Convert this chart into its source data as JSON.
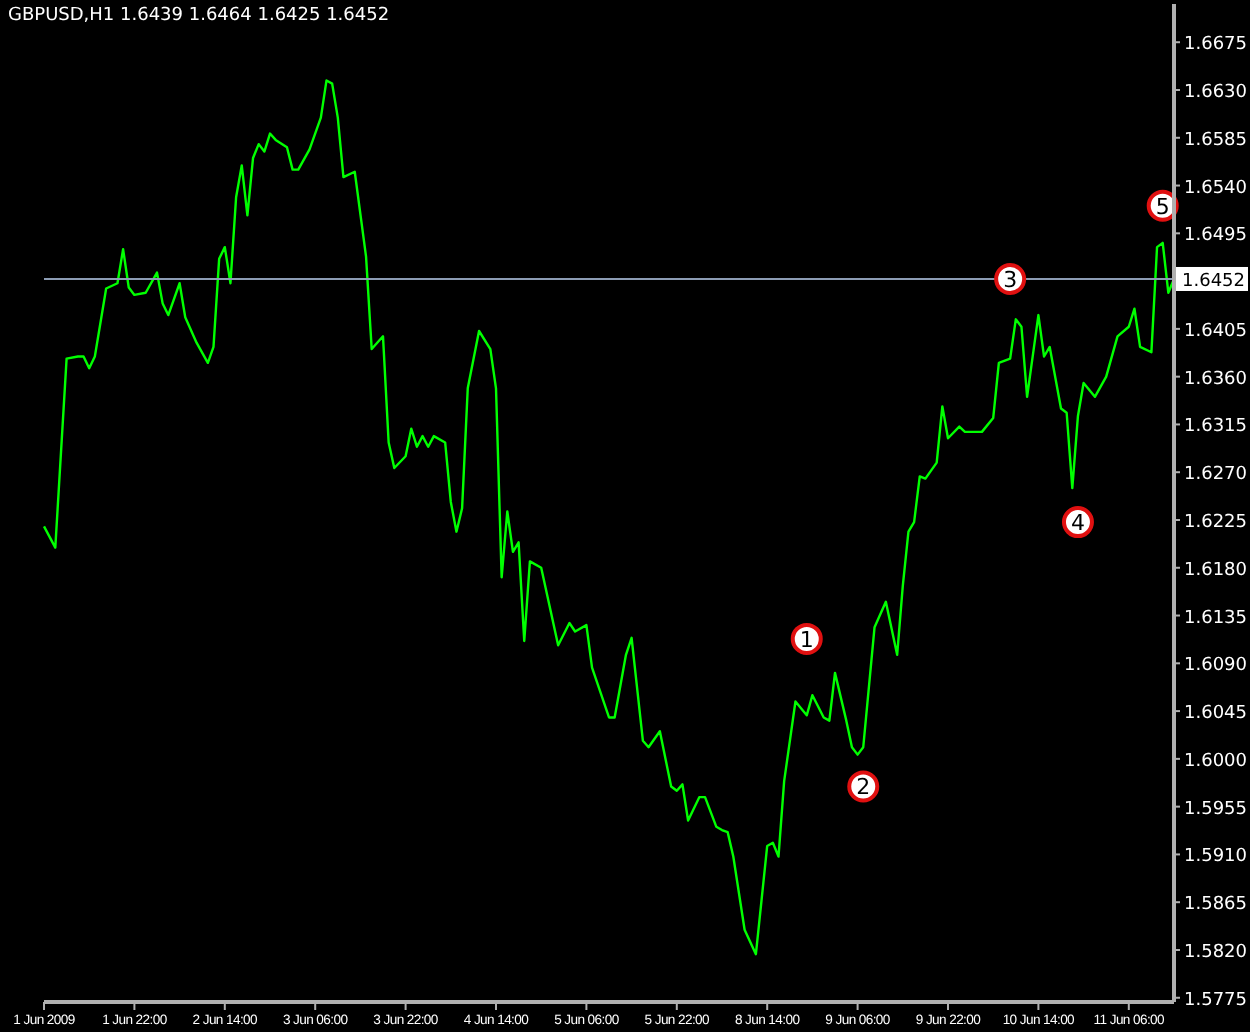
{
  "chart_data": {
    "type": "line",
    "title": "GBPUSD,H1  1.6439 1.6464 1.6425 1.6452",
    "categories": [
      "1 Jun 2009",
      null,
      null,
      null,
      null,
      null,
      null,
      null,
      null,
      null,
      null,
      null,
      null,
      null,
      null,
      null,
      "1 Jun 22:00",
      null,
      null,
      null,
      null,
      null,
      null,
      null,
      null,
      null,
      null,
      null,
      null,
      null,
      null,
      null,
      "2 Jun 14:00",
      null,
      null,
      null,
      null,
      null,
      null,
      null,
      null,
      null,
      null,
      null,
      null,
      null,
      null,
      null,
      "3 Jun 06:00",
      null,
      null,
      null,
      null,
      null,
      null,
      null,
      null,
      null,
      null,
      null,
      null,
      null,
      null,
      null,
      "3 Jun 22:00",
      null,
      null,
      null,
      null,
      null,
      null,
      null,
      null,
      null,
      null,
      null,
      null,
      null,
      null,
      null,
      "4 Jun 14:00",
      null,
      null,
      null,
      null,
      null,
      null,
      null,
      null,
      null,
      null,
      null,
      null,
      null,
      null,
      null,
      "5 Jun 06:00",
      null,
      null,
      null,
      null,
      null,
      null,
      null,
      null,
      null,
      null,
      null,
      null,
      null,
      null,
      null,
      "5 Jun 22:00",
      null,
      null,
      null,
      null,
      null,
      null,
      null,
      null,
      null,
      null,
      null,
      null,
      null,
      null,
      null,
      "8 Jun 14:00",
      null,
      null,
      null,
      null,
      null,
      null,
      null,
      null,
      null,
      null,
      null,
      null,
      null,
      null,
      null,
      "9 Jun 06:00",
      null,
      null,
      null,
      null,
      null,
      null,
      null,
      null,
      null,
      null,
      null,
      null,
      null,
      null,
      null,
      "9 Jun 22:00",
      null,
      null,
      null,
      null,
      null,
      null,
      null,
      null,
      null,
      null,
      null,
      null,
      null,
      null,
      null,
      "10 Jun 14:00",
      null,
      null,
      null,
      null,
      null,
      null,
      null,
      null,
      null,
      null,
      null,
      null,
      null,
      null,
      null,
      "11 Jun 06:00",
      null,
      null,
      null,
      null,
      null,
      null,
      null,
      null
    ],
    "series": [
      {
        "color": "#00ff00",
        "values": [
          1.6219,
          null,
          1.6199,
          null,
          1.6377,
          null,
          1.6379,
          1.6379,
          1.6368,
          1.6379,
          null,
          1.6443,
          null,
          1.6448,
          1.648,
          1.6444,
          1.6437,
          null,
          1.6439,
          null,
          1.6458,
          1.6429,
          1.6418,
          null,
          1.6448,
          1.6416,
          null,
          1.6392,
          null,
          1.6373,
          1.6388,
          1.6471,
          1.6482,
          1.6448,
          1.6529,
          1.6559,
          1.6512,
          1.6566,
          1.6579,
          1.6572,
          1.6589,
          1.6583,
          null,
          1.6576,
          1.6555,
          1.6555,
          null,
          1.6574,
          null,
          1.6604,
          1.6639,
          1.6636,
          1.6604,
          1.6548,
          null,
          1.6553,
          null,
          1.6473,
          1.6386,
          null,
          1.6398,
          1.6298,
          1.6274,
          null,
          1.6285,
          1.6311,
          1.6294,
          1.6304,
          1.6294,
          1.6304,
          null,
          1.6298,
          1.6242,
          1.6214,
          1.6236,
          1.6349,
          null,
          1.6403,
          null,
          1.6386,
          1.6349,
          1.6171,
          1.6233,
          1.6195,
          1.6204,
          1.6111,
          1.6186,
          null,
          1.618,
          null,
          null,
          1.6107,
          null,
          1.6128,
          1.612,
          null,
          1.6126,
          1.6086,
          null,
          null,
          1.6039,
          1.6039,
          null,
          1.6098,
          1.6114,
          null,
          1.6017,
          1.6011,
          null,
          1.6026,
          null,
          1.5974,
          1.597,
          1.5976,
          1.5942,
          null,
          1.5964,
          1.5964,
          null,
          1.5936,
          1.5933,
          1.5931,
          1.5908,
          null,
          1.5839,
          null,
          1.5816,
          null,
          1.5918,
          1.5921,
          1.5908,
          1.5979,
          null,
          1.6054,
          null,
          1.6041,
          1.606,
          null,
          1.6039,
          1.6036,
          1.6081,
          null,
          1.6036,
          1.6011,
          1.6004,
          1.6011,
          null,
          1.6124,
          null,
          1.6148,
          null,
          1.6098,
          1.6163,
          1.6214,
          1.6223,
          1.6266,
          1.6264,
          null,
          1.6279,
          1.6332,
          1.6302,
          null,
          1.6313,
          1.6308,
          null,
          null,
          1.6308,
          null,
          1.6321,
          1.6373,
          null,
          1.6377,
          1.6414,
          1.6407,
          1.6341,
          null,
          1.6418,
          1.6379,
          1.6388,
          null,
          1.633,
          1.6326,
          1.6255,
          1.6323,
          1.6354,
          null,
          1.6341,
          null,
          1.636,
          null,
          1.6398,
          null,
          1.6407,
          1.6424,
          1.6388,
          null,
          1.6383,
          1.6482,
          1.6486,
          1.6439,
          1.6452
        ]
      }
    ],
    "ylim": [
      1.5771,
      1.6711
    ],
    "yticks": [
      1.6675,
      {
        "value": 1.663,
        "label": "1.6630"
      },
      1.6585,
      {
        "value": 1.654,
        "label": "1.6540"
      },
      1.6495,
      1.6405,
      {
        "value": 1.636,
        "label": "1.6360"
      },
      1.6315,
      {
        "value": 1.627,
        "label": "1.6270"
      },
      1.6225,
      {
        "value": 1.618,
        "label": "1.6180"
      },
      1.6135,
      {
        "value": 1.609,
        "label": "1.6090"
      },
      1.6045,
      {
        "value": 1.6,
        "label": "1.6000"
      },
      1.5955,
      {
        "value": 1.591,
        "label": "1.5910"
      },
      1.5865,
      {
        "value": 1.582,
        "label": "1.5820"
      },
      1.5775
    ],
    "ref_lines": [
      {
        "axis": "y",
        "value": 1.6452,
        "label": "1.6452",
        "color": "#8c9cb4"
      }
    ],
    "annotations": [
      {
        "text": "1",
        "y": 1.6113
      },
      {
        "text": "2",
        "y": 1.5974
      },
      {
        "text": "3",
        "y": 1.6452
      },
      {
        "text": "4",
        "y": 1.6223
      },
      {
        "text": "5",
        "y": 1.6521
      }
    ],
    "grid": false,
    "marker": "none",
    "line_style": "solid"
  }
}
